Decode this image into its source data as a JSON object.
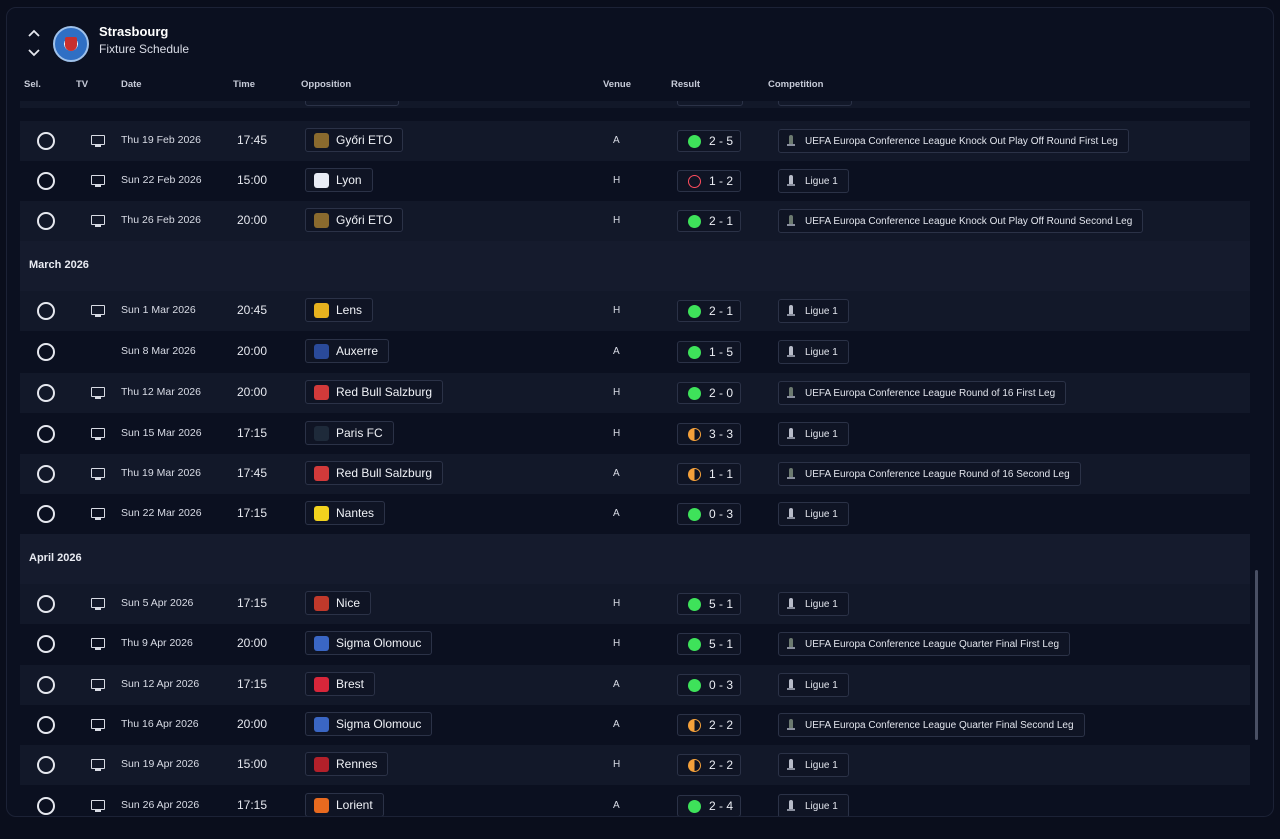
{
  "header": {
    "club_name": "Strasbourg",
    "subtitle": "Fixture Schedule"
  },
  "columns": {
    "sel": "Sel.",
    "tv": "TV",
    "date": "Date",
    "time": "Time",
    "opposition": "Opposition",
    "venue": "Venue",
    "result": "Result",
    "competition": "Competition"
  },
  "colors": {
    "win": "#3ee25a",
    "loss": "#ff4d5e",
    "draw": "#f5a13a",
    "background": "#0a0e1c"
  },
  "months": [
    "March 2026",
    "April 2026"
  ],
  "fixtures": [
    {
      "date": "Thu 19 Feb 2026",
      "time": "17:45",
      "opponent": "Győri ETO",
      "venue": "A",
      "result": "win",
      "score": "2 - 5",
      "competition": "UEFA Europa Conference League Knock Out Play Off Round First Leg",
      "tv": true,
      "badge_color": "#8a6a2e",
      "comp_icon": "uecl-trophy-icon"
    },
    {
      "date": "Sun 22 Feb 2026",
      "time": "15:00",
      "opponent": "Lyon",
      "venue": "H",
      "result": "loss",
      "score": "1 - 2",
      "competition": "Ligue 1",
      "tv": true,
      "badge_color": "#e8ecf5",
      "comp_icon": "ligue1-trophy-icon"
    },
    {
      "date": "Thu 26 Feb 2026",
      "time": "20:00",
      "opponent": "Győri ETO",
      "venue": "H",
      "result": "win",
      "score": "2 - 1",
      "competition": "UEFA Europa Conference League Knock Out Play Off Round Second Leg",
      "tv": true,
      "badge_color": "#8a6a2e",
      "comp_icon": "uecl-trophy-icon"
    },
    {
      "date": "Sun 1 Mar 2026",
      "time": "20:45",
      "opponent": "Lens",
      "venue": "H",
      "result": "win",
      "score": "2 - 1",
      "competition": "Ligue 1",
      "tv": true,
      "badge_color": "#e7b21f",
      "comp_icon": "ligue1-trophy-icon"
    },
    {
      "date": "Sun 8 Mar 2026",
      "time": "20:00",
      "opponent": "Auxerre",
      "venue": "A",
      "result": "win",
      "score": "1 - 5",
      "competition": "Ligue 1",
      "tv": false,
      "badge_color": "#2a4a9a",
      "comp_icon": "ligue1-trophy-icon"
    },
    {
      "date": "Thu 12 Mar 2026",
      "time": "20:00",
      "opponent": "Red Bull Salzburg",
      "venue": "H",
      "result": "win",
      "score": "2 - 0",
      "competition": "UEFA Europa Conference League Round of 16  First Leg",
      "tv": true,
      "badge_color": "#d23a3a",
      "comp_icon": "uecl-trophy-icon"
    },
    {
      "date": "Sun 15 Mar 2026",
      "time": "17:15",
      "opponent": "Paris FC",
      "venue": "H",
      "result": "draw",
      "score": "3 - 3",
      "competition": "Ligue 1",
      "tv": true,
      "badge_color": "#1e2a3a",
      "comp_icon": "ligue1-trophy-icon"
    },
    {
      "date": "Thu 19 Mar 2026",
      "time": "17:45",
      "opponent": "Red Bull Salzburg",
      "venue": "A",
      "result": "draw",
      "score": "1 - 1",
      "competition": "UEFA Europa Conference League Round of 16  Second Leg",
      "tv": true,
      "badge_color": "#d23a3a",
      "comp_icon": "uecl-trophy-icon"
    },
    {
      "date": "Sun 22 Mar 2026",
      "time": "17:15",
      "opponent": "Nantes",
      "venue": "A",
      "result": "win",
      "score": "0 - 3",
      "competition": "Ligue 1",
      "tv": true,
      "badge_color": "#f2d21e",
      "comp_icon": "ligue1-trophy-icon"
    },
    {
      "date": "Sun 5 Apr 2026",
      "time": "17:15",
      "opponent": "Nice",
      "venue": "H",
      "result": "win",
      "score": "5 - 1",
      "competition": "Ligue 1",
      "tv": true,
      "badge_color": "#c0392b",
      "comp_icon": "ligue1-trophy-icon"
    },
    {
      "date": "Thu 9 Apr 2026",
      "time": "20:00",
      "opponent": "Sigma Olomouc",
      "venue": "H",
      "result": "win",
      "score": "5 - 1",
      "competition": "UEFA Europa Conference League Quarter Final First Leg",
      "tv": true,
      "badge_color": "#3a66c4",
      "comp_icon": "uecl-trophy-icon"
    },
    {
      "date": "Sun 12 Apr 2026",
      "time": "17:15",
      "opponent": "Brest",
      "venue": "A",
      "result": "win",
      "score": "0 - 3",
      "competition": "Ligue 1",
      "tv": true,
      "badge_color": "#d8263a",
      "comp_icon": "ligue1-trophy-icon"
    },
    {
      "date": "Thu 16 Apr 2026",
      "time": "20:00",
      "opponent": "Sigma Olomouc",
      "venue": "A",
      "result": "draw",
      "score": "2 - 2",
      "competition": "UEFA Europa Conference League Quarter Final Second Leg",
      "tv": true,
      "badge_color": "#3a66c4",
      "comp_icon": "uecl-trophy-icon"
    },
    {
      "date": "Sun 19 Apr 2026",
      "time": "15:00",
      "opponent": "Rennes",
      "venue": "H",
      "result": "draw",
      "score": "2 - 2",
      "competition": "Ligue 1",
      "tv": true,
      "badge_color": "#b3202a",
      "comp_icon": "ligue1-trophy-icon"
    },
    {
      "date": "Sun 26 Apr 2026",
      "time": "17:15",
      "opponent": "Lorient",
      "venue": "A",
      "result": "win",
      "score": "2 - 4",
      "competition": "Ligue 1",
      "tv": true,
      "badge_color": "#e86a1f",
      "comp_icon": "ligue1-trophy-icon"
    }
  ]
}
